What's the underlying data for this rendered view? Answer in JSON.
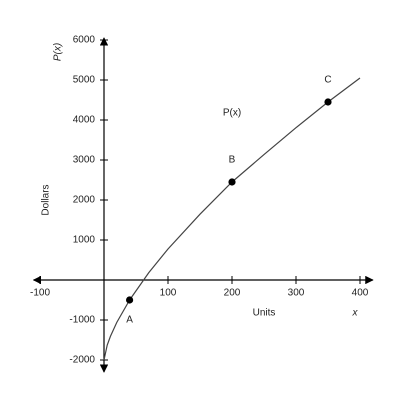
{
  "chart_data": {
    "type": "line",
    "y_axis_title": "P(x)",
    "y_label": "Dollars",
    "x_label": "Units",
    "x_axis_title": "x",
    "x": [
      0,
      5,
      10,
      20,
      40,
      70,
      100,
      150,
      200,
      250,
      300,
      350,
      400
    ],
    "series": [
      {
        "name": "P(x)",
        "color": "#444444",
        "values": [
          -2000,
          -1629,
          -1409,
          -1059,
          -500,
          184,
          776,
          1646,
          2450,
          3136,
          3807,
          4450,
          5050
        ]
      }
    ],
    "points": {
      "labels": [
        "A",
        "B",
        "C"
      ],
      "x": [
        40,
        200,
        350
      ],
      "values": [
        -500,
        2450,
        4450
      ],
      "color": "#000000"
    },
    "xlim": [
      -110,
      420
    ],
    "ylim": [
      -2300,
      6050
    ],
    "xticks": [
      -100,
      100,
      200,
      300,
      400
    ],
    "yticks": [
      -2000,
      -1000,
      1000,
      2000,
      3000,
      4000,
      5000,
      6000
    ]
  }
}
